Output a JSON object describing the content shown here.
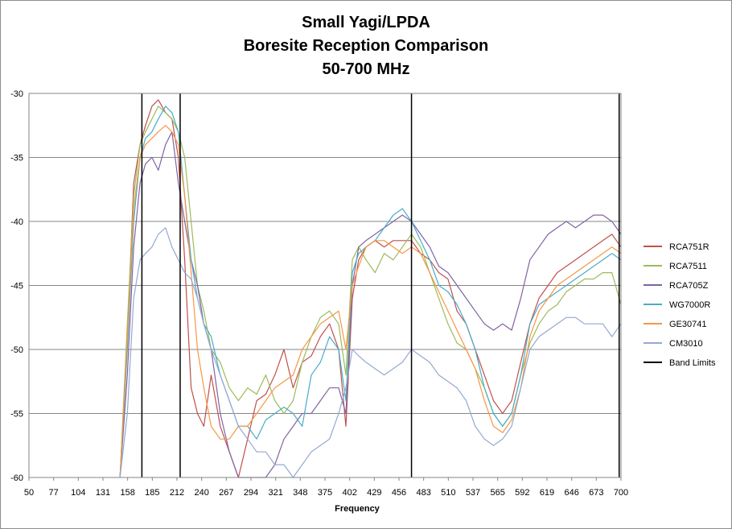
{
  "chart_data": {
    "type": "line",
    "title_lines": [
      "Small Yagi/LPDA",
      "Boresite Reception Comparison",
      "50-700 MHz"
    ],
    "xlabel": "Frequency",
    "ylabel": "",
    "xlim": [
      50,
      700
    ],
    "ylim": [
      -60,
      -30
    ],
    "x_ticks": [
      "50",
      "77",
      "104",
      "131",
      "158",
      "185",
      "212",
      "240",
      "267",
      "294",
      "321",
      "348",
      "375",
      "402",
      "429",
      "456",
      "483",
      "510",
      "537",
      "565",
      "592",
      "619",
      "646",
      "673",
      "700"
    ],
    "y_ticks": [
      "-30",
      "-35",
      "-40",
      "-45",
      "-50",
      "-55",
      "-60"
    ],
    "legend_position": "right",
    "band_limits": [
      174,
      216,
      470,
      698
    ],
    "x": [
      150,
      158,
      165,
      172,
      178,
      185,
      192,
      200,
      207,
      214,
      221,
      228,
      235,
      242,
      250,
      260,
      270,
      280,
      290,
      300,
      310,
      320,
      330,
      340,
      350,
      360,
      370,
      380,
      390,
      398,
      405,
      412,
      420,
      430,
      440,
      450,
      460,
      470,
      480,
      490,
      500,
      510,
      520,
      530,
      540,
      550,
      560,
      570,
      580,
      590,
      600,
      610,
      620,
      630,
      640,
      650,
      660,
      670,
      680,
      690,
      700
    ],
    "series": [
      {
        "name": "RCA751R",
        "color": "#C0504D",
        "values": [
          -60,
          -49,
          -37,
          -34,
          -32.5,
          -31,
          -30.5,
          -31.5,
          -32,
          -35,
          -43,
          -53,
          -55,
          -56,
          -52,
          -56,
          -58,
          -60,
          -57,
          -54,
          -53.5,
          -52,
          -50,
          -53,
          -51,
          -50.5,
          -49,
          -48,
          -50,
          -56,
          -46,
          -43,
          -42,
          -41.5,
          -42,
          -41.5,
          -41.5,
          -41.5,
          -42.5,
          -43,
          -44,
          -44.5,
          -47,
          -48,
          -50,
          -52,
          -54,
          -55,
          -54,
          -51,
          -48,
          -46,
          -45,
          -44,
          -43.5,
          -43,
          -42.5,
          -42,
          -41.5,
          -41,
          -42
        ]
      },
      {
        "name": "RCA7511",
        "color": "#9BBB59",
        "values": [
          -60,
          -48,
          -38,
          -34,
          -33,
          -32,
          -31,
          -31.5,
          -32,
          -33,
          -35,
          -40,
          -45,
          -47,
          -50,
          -51,
          -53,
          -54,
          -53,
          -53.5,
          -52,
          -54,
          -55,
          -54,
          -51,
          -49,
          -47.5,
          -47,
          -48,
          -52,
          -43,
          -42,
          -43,
          -44,
          -42.5,
          -43,
          -42,
          -41,
          -42,
          -44,
          -46,
          -48,
          -49.5,
          -50,
          -51.5,
          -53,
          -55,
          -56,
          -55,
          -52,
          -49.5,
          -48,
          -47,
          -46.5,
          -45.5,
          -45,
          -44.5,
          -44.5,
          -44,
          -44,
          -46.5
        ]
      },
      {
        "name": "RCA705Z",
        "color": "#8064A2",
        "values": [
          -60,
          -52,
          -42,
          -37,
          -35.5,
          -35,
          -36,
          -34,
          -33,
          -37,
          -40,
          -43,
          -45,
          -48,
          -50,
          -55,
          -58,
          -60,
          -60,
          -60,
          -60,
          -59,
          -57,
          -56,
          -55,
          -55,
          -54,
          -53,
          -53,
          -55,
          -45,
          -42,
          -41.5,
          -41,
          -40.5,
          -40,
          -39.5,
          -40,
          -41,
          -42,
          -43.5,
          -44,
          -45,
          -46,
          -47,
          -48,
          -48.5,
          -48,
          -48.5,
          -46,
          -43,
          -42,
          -41,
          -40.5,
          -40,
          -40.5,
          -40,
          -39.5,
          -39.5,
          -40,
          -41
        ]
      },
      {
        "name": "WG7000R",
        "color": "#4BACC6",
        "values": [
          -60,
          -50,
          -40,
          -35,
          -33.5,
          -33,
          -32,
          -31,
          -31.5,
          -33,
          -38,
          -43,
          -46,
          -48,
          -49,
          -52,
          -54,
          -56,
          -56,
          -57,
          -55.5,
          -55,
          -54.5,
          -55,
          -56,
          -52,
          -51,
          -49,
          -50,
          -54,
          -44,
          -42.5,
          -42,
          -41.5,
          -40.5,
          -39.5,
          -39,
          -40,
          -41.5,
          -43,
          -45,
          -45.5,
          -46.5,
          -48,
          -50,
          -53,
          -55,
          -56,
          -55,
          -52,
          -48,
          -46.5,
          -46,
          -45.5,
          -45,
          -44.5,
          -44,
          -43.5,
          -43,
          -42.5,
          -43
        ]
      },
      {
        "name": "GE30741",
        "color": "#F79646",
        "values": [
          -60,
          -49,
          -39,
          -35,
          -34,
          -33.5,
          -33,
          -32.5,
          -33,
          -34,
          -38,
          -44,
          -50,
          -53,
          -56,
          -57,
          -57,
          -56,
          -56,
          -55,
          -54,
          -53,
          -52.5,
          -52,
          -50,
          -49,
          -48,
          -47.5,
          -47,
          -50,
          -45,
          -43.5,
          -42,
          -41.5,
          -41.5,
          -42,
          -42.5,
          -42,
          -42.5,
          -44,
          -45.5,
          -47,
          -48.5,
          -50,
          -51.5,
          -54,
          -56,
          -56.5,
          -55.5,
          -53,
          -49,
          -47,
          -46,
          -45,
          -44.5,
          -44,
          -43.5,
          -43,
          -42.5,
          -42,
          -42.5
        ]
      },
      {
        "name": "CM3010",
        "color": "#93A9D3",
        "values": [
          -60,
          -55,
          -46,
          -43,
          -42.5,
          -42,
          -41,
          -40.5,
          -42,
          -43,
          -44,
          -44.5,
          -46,
          -48,
          -50,
          -52,
          -54,
          -56,
          -57,
          -58,
          -58,
          -59,
          -59,
          -60,
          -59,
          -58,
          -57.5,
          -57,
          -55,
          -53,
          -50,
          -50.5,
          -51,
          -51.5,
          -52,
          -51.5,
          -51,
          -50,
          -50.5,
          -51,
          -52,
          -52.5,
          -53,
          -54,
          -56,
          -57,
          -57.5,
          -57,
          -56,
          -53,
          -50,
          -49,
          -48.5,
          -48,
          -47.5,
          -47.5,
          -48,
          -48,
          -48,
          -49,
          -48
        ]
      }
    ],
    "band_limits_label": "Band Limits",
    "band_limits_color": "#000000"
  }
}
